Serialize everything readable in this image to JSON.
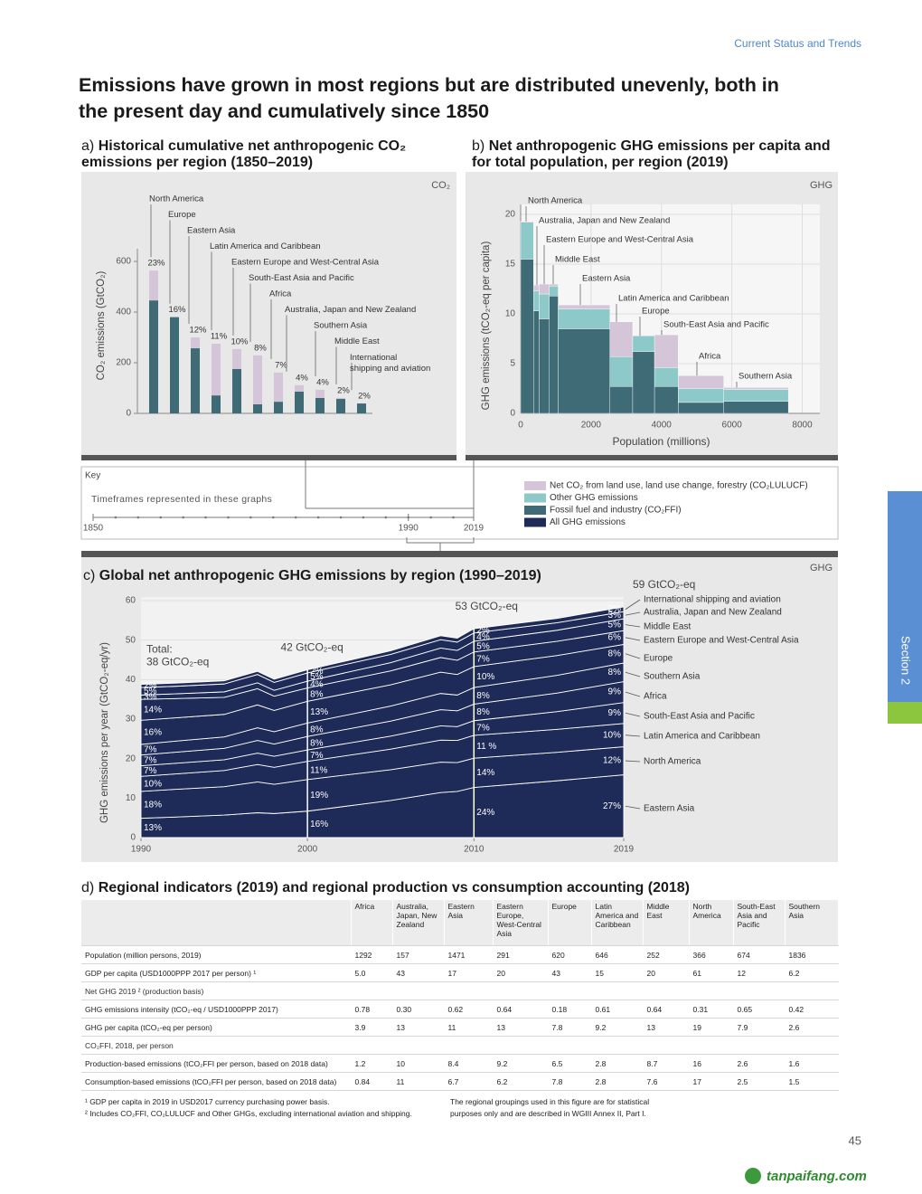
{
  "header": "Current Status and Trends",
  "title": "Emissions have grown in most regions but are distributed unevenly, both in the present day and cumulatively since 1850",
  "chart_data": [
    {
      "type": "bar",
      "label": "a)",
      "title": "Historical cumulative net anthropogenic CO₂ emissions per region (1850–2019)",
      "badge": "CO₂",
      "ylabel": "CO₂ emissions (GtCO₂)",
      "categories": [
        "North America",
        "Europe",
        "Eastern Asia",
        "Latin America and Caribbean",
        "Eastern Europe and West-Central Asia",
        "South-East Asia and Pacific",
        "Africa",
        "Australia, Japan and New Zealand",
        "Southern Asia",
        "Middle East",
        "International shipping and aviation"
      ],
      "series": [
        {
          "color": "#3f6b76",
          "values": [
            446,
            380,
            257,
            71,
            175,
            36,
            46,
            86,
            61,
            57,
            39
          ]
        },
        {
          "color": "#d4c6d8",
          "values": [
            118,
            0,
            43,
            204,
            79,
            193,
            115,
            25,
            32,
            4,
            0
          ]
        }
      ],
      "share_labels": [
        "23%",
        "16%",
        "12%",
        "11%",
        "10%",
        "8%",
        "7%",
        "4%",
        "4%",
        "2%",
        "2%"
      ],
      "ylim": [
        0,
        650
      ],
      "yticks": [
        0,
        200,
        400,
        600
      ]
    },
    {
      "type": "mekko",
      "label": "b)",
      "title": "Net anthropogenic GHG emissions per capita and for total population, per region (2019)",
      "badge": "GHG",
      "xlabel": "Population (millions)",
      "ylabel": "GHG emissions (tCO₂-eq per capita)",
      "categories": [
        "North America",
        "Australia, Japan and New Zealand",
        "Eastern Europe and West-Central Asia",
        "Middle East",
        "Eastern Asia",
        "Latin America and Caribbean",
        "Europe",
        "South-East Asia and Pacific",
        "Africa",
        "Southern Asia"
      ],
      "populations": [
        366,
        157,
        291,
        252,
        1471,
        646,
        620,
        674,
        1292,
        1836
      ],
      "series": [
        {
          "color": "#3f6b76",
          "values": [
            15.5,
            10.3,
            9.5,
            11.8,
            8.5,
            2.7,
            6.2,
            2.7,
            1.1,
            1.2
          ]
        },
        {
          "color": "#8dc9c9",
          "values": [
            3.7,
            2.0,
            2.5,
            1.0,
            2.0,
            3.0,
            1.6,
            1.9,
            1.4,
            1.2
          ]
        },
        {
          "color": "#d4c6d8",
          "values": [
            0.1,
            0.6,
            1.0,
            0.2,
            0.4,
            3.5,
            0,
            3.3,
            1.3,
            0.2
          ]
        }
      ],
      "xlim": [
        0,
        8500
      ],
      "xticks": [
        0,
        2000,
        4000,
        6000,
        8000
      ],
      "ylim": [
        0,
        21
      ],
      "yticks": [
        0,
        5,
        10,
        15,
        20
      ],
      "grid": true
    },
    {
      "type": "area",
      "label": "c)",
      "title": "Global net anthropogenic GHG emissions by region (1990–2019)",
      "badge": "GHG",
      "ylabel": "GHG emissions per year (GtCO₂-eq/yr)",
      "x": [
        1990,
        1992,
        1995,
        1997,
        1998,
        2000,
        2005,
        2008,
        2009,
        2010,
        2015,
        2019
      ],
      "xlim": [
        1990,
        2019
      ],
      "xticks": [
        1990,
        2000,
        2010,
        2019
      ],
      "ylim": [
        0,
        60
      ],
      "yticks": [
        0,
        10,
        20,
        30,
        40,
        50,
        60
      ],
      "grid": true,
      "label_years": [
        1990,
        2000,
        2010,
        2019
      ],
      "series": [
        {
          "name": "Eastern Asia",
          "color": "#1e2a57",
          "values": [
            4.9,
            5.2,
            5.7,
            6.3,
            6.1,
            6.7,
            9.4,
            11.4,
            11.7,
            12.7,
            14.4,
            15.9
          ],
          "share_labels": [
            "13%",
            "16%",
            "24%",
            "27%"
          ]
        },
        {
          "name": "North America",
          "color": "#1e2a57",
          "values": [
            6.8,
            7.0,
            7.2,
            7.8,
            7.4,
            8.0,
            7.8,
            7.7,
            7.3,
            7.4,
            7.2,
            7.1
          ],
          "share_labels": [
            "18%",
            "19%",
            "14%",
            "12%"
          ]
        },
        {
          "name": "Latin America and Caribbean",
          "color": "#1e2a57",
          "values": [
            3.8,
            3.9,
            4.1,
            4.4,
            4.3,
            4.6,
            5.2,
            5.6,
            5.6,
            5.8,
            5.8,
            5.9
          ],
          "share_labels": [
            "10%",
            "11%",
            "11 %",
            "10%"
          ]
        },
        {
          "name": "South-East Asia and Pacific",
          "color": "#1e2a57",
          "values": [
            2.7,
            2.7,
            2.7,
            2.9,
            2.8,
            2.9,
            3.3,
            3.6,
            3.5,
            3.7,
            4.5,
            5.3
          ],
          "share_labels": [
            "7%",
            "7%",
            "7%",
            "9%"
          ]
        },
        {
          "name": "Africa",
          "color": "#1e2a57",
          "values": [
            2.7,
            2.8,
            2.9,
            3.2,
            3.1,
            3.4,
            3.8,
            4.1,
            4.0,
            4.2,
            4.7,
            5.3
          ],
          "share_labels": [
            "7%",
            "8%",
            "8%",
            "9%"
          ]
        },
        {
          "name": "Southern Asia",
          "color": "#1e2a57",
          "values": [
            2.7,
            2.8,
            2.9,
            3.2,
            3.1,
            3.4,
            3.8,
            4.1,
            4.0,
            4.2,
            4.5,
            4.7
          ],
          "share_labels": [
            "7%",
            "8%",
            "8%",
            "8%"
          ]
        },
        {
          "name": "Europe",
          "color": "#1e2a57",
          "values": [
            6.1,
            5.9,
            5.7,
            5.8,
            5.4,
            5.5,
            5.4,
            5.4,
            5.2,
            5.3,
            5.0,
            4.7
          ],
          "share_labels": [
            "16%",
            "13%",
            "10%",
            "8%"
          ]
        },
        {
          "name": "Eastern Europe and West-Central Asia",
          "color": "#1e2a57",
          "values": [
            5.3,
            4.9,
            4.3,
            4.1,
            3.6,
            3.4,
            3.5,
            3.7,
            3.6,
            3.7,
            3.6,
            3.5
          ],
          "share_labels": [
            "14%",
            "8%",
            "7%",
            "6%"
          ]
        },
        {
          "name": "Middle East",
          "color": "#1e2a57",
          "values": [
            1.1,
            1.2,
            1.4,
            1.5,
            1.5,
            1.7,
            2.1,
            2.4,
            2.5,
            2.7,
            2.8,
            3.0
          ],
          "share_labels": [
            "3%",
            "4%",
            "5%",
            "5%"
          ]
        },
        {
          "name": "Australia, Japan and New Zealand",
          "color": "#1e2a57",
          "values": [
            1.9,
            1.9,
            2.0,
            2.1,
            2.0,
            2.1,
            2.1,
            2.1,
            2.1,
            2.1,
            1.9,
            1.8
          ],
          "share_labels": [
            "5%",
            "5%",
            "4%",
            "3%"
          ]
        },
        {
          "name": "International shipping and aviation",
          "color": "#1e2a57",
          "values": [
            0.8,
            0.8,
            0.8,
            0.8,
            0.8,
            0.8,
            0.9,
            1.0,
            1.0,
            1.1,
            1.1,
            1.2
          ],
          "share_labels": [
            "2%",
            "2%",
            "2%",
            "2%"
          ]
        }
      ],
      "annotations": [
        {
          "x": 1990,
          "lines": [
            "Total:",
            "38 GtCO₂-eq"
          ]
        },
        {
          "x": 2000,
          "lines": [
            "42 GtCO₂-eq"
          ]
        },
        {
          "x": 2010,
          "lines": [
            "53 GtCO₂-eq"
          ]
        },
        {
          "x": 2019,
          "lines": [
            "59 GtCO₂-eq"
          ]
        }
      ]
    }
  ],
  "key": {
    "title": "Key",
    "timeline_label": "Timeframes represented in these graphs",
    "timeline_lim": [
      1850,
      2019
    ],
    "timeline_ticks": [
      1850,
      1990,
      2019
    ],
    "legend": [
      {
        "name": "Net CO₂ from land use, land use change, forestry (CO₂LULUCF)",
        "color": "#d4c6d8"
      },
      {
        "name": "Other GHG emissions",
        "color": "#8dc9c9"
      },
      {
        "name": "Fossil fuel and industry (CO₂FFI)",
        "color": "#3f6b76"
      },
      {
        "name": "All GHG emissions",
        "color": "#1e2a57"
      }
    ]
  },
  "table": {
    "label": "d)",
    "title": "Regional indicators (2019) and regional production vs consumption accounting (2018)",
    "columns": [
      "Africa",
      "Australia, Japan, New Zealand",
      "Eastern Asia",
      "Eastern Europe, West-Central Asia",
      "Europe",
      "Latin America and Caribbean",
      "Middle East",
      "North America",
      "South-East Asia and Pacific",
      "Southern Asia"
    ],
    "rows": [
      {
        "label": "Population (million persons, 2019)",
        "cells": [
          "1292",
          "157",
          "1471",
          "291",
          "620",
          "646",
          "252",
          "366",
          "674",
          "1836"
        ]
      },
      {
        "label": "GDP per capita (USD1000PPP 2017 per person) ¹",
        "cells": [
          "5.0",
          "43",
          "17",
          "20",
          "43",
          "15",
          "20",
          "61",
          "12",
          "6.2"
        ]
      },
      {
        "label": "Net GHG 2019 ² (production basis)"
      },
      {
        "label": "GHG emissions intensity (tCO₂-eq / USD1000PPP 2017)",
        "cells": [
          "0.78",
          "0.30",
          "0.62",
          "0.64",
          "0.18",
          "0.61",
          "0.64",
          "0.31",
          "0.65",
          "0.42"
        ]
      },
      {
        "label": "GHG per capita (tCO₂-eq per person)",
        "cells": [
          "3.9",
          "13",
          "11",
          "13",
          "7.8",
          "9.2",
          "13",
          "19",
          "7.9",
          "2.6"
        ]
      },
      {
        "label": "CO₂FFI, 2018, per person"
      },
      {
        "label": "Production-based emissions (tCO₂FFI per person, based on 2018 data)",
        "cells": [
          "1.2",
          "10",
          "8.4",
          "9.2",
          "6.5",
          "2.8",
          "8.7",
          "16",
          "2.6",
          "1.6"
        ]
      },
      {
        "label": "Consumption-based emissions (tCO₂FFI per person, based on 2018 data)",
        "cells": [
          "0.84",
          "11",
          "6.7",
          "6.2",
          "7.8",
          "2.8",
          "7.6",
          "17",
          "2.5",
          "1.5"
        ]
      }
    ],
    "footnotes": [
      "¹ GDP per capita in 2019 in USD2017 currency purchasing power basis.",
      "² Includes CO₂FFI, CO₂LULUCF and Other GHGs, excluding international aviation and shipping."
    ],
    "note": "The regional groupings used in this figure are for statistical purposes only and are described in WGIII Annex II, Part I."
  },
  "section_tab": "Section 2",
  "page_number": "45",
  "watermark": "tanpaifang.com"
}
